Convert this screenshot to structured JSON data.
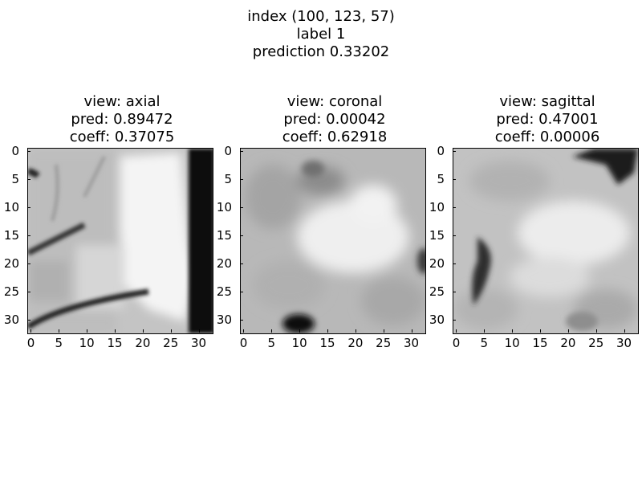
{
  "suptitle": {
    "line1": "index (100, 123, 57)",
    "line2": "label 1",
    "line3": "prediction 0.33202"
  },
  "panels": [
    {
      "title": "view: axial",
      "pred": "pred: 0.89472",
      "coeff": "coeff: 0.37075"
    },
    {
      "title": "view: coronal",
      "pred": "pred: 0.00042",
      "coeff": "coeff: 0.62918"
    },
    {
      "title": "view: sagittal",
      "pred": "pred: 0.47001",
      "coeff": "coeff: 0.00006"
    }
  ],
  "chart_data": [
    {
      "type": "heatmap",
      "title": "view: axial\npred: 0.89472\ncoeff: 0.37075",
      "xticks": [
        0,
        5,
        10,
        15,
        20,
        25,
        30
      ],
      "yticks": [
        0,
        5,
        10,
        15,
        20,
        25,
        30
      ],
      "xlim": [
        0,
        32
      ],
      "ylim": [
        32,
        0
      ],
      "colormap": "gray"
    },
    {
      "type": "heatmap",
      "title": "view: coronal\npred: 0.00042\ncoeff: 0.62918",
      "xticks": [
        0,
        5,
        10,
        15,
        20,
        25,
        30
      ],
      "yticks": [
        0,
        5,
        10,
        15,
        20,
        25,
        30
      ],
      "xlim": [
        0,
        32
      ],
      "ylim": [
        32,
        0
      ],
      "colormap": "gray"
    },
    {
      "type": "heatmap",
      "title": "view: sagittal\npred: 0.47001\ncoeff: 0.00006",
      "xticks": [
        0,
        5,
        10,
        15,
        20,
        25,
        30
      ],
      "yticks": [
        0,
        5,
        10,
        15,
        20,
        25,
        30
      ],
      "xlim": [
        0,
        32
      ],
      "ylim": [
        32,
        0
      ],
      "colormap": "gray"
    }
  ],
  "ticks": [
    "0",
    "5",
    "10",
    "15",
    "20",
    "25",
    "30"
  ]
}
